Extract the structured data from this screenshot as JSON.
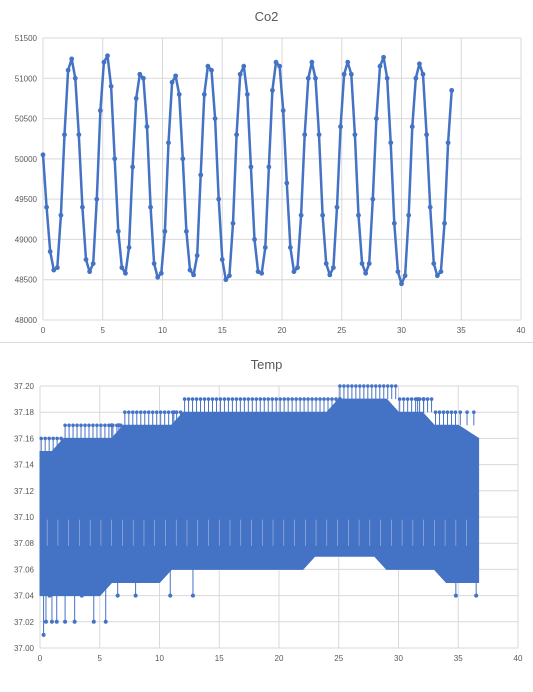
{
  "chart_data": [
    {
      "type": "scatter",
      "title": "Co2",
      "xlim": [
        0,
        40
      ],
      "ylim": [
        48000,
        51500
      ],
      "x_ticks": [
        "0",
        "5",
        "10",
        "15",
        "20",
        "25",
        "30",
        "35",
        "40"
      ],
      "y_ticks": [
        "48000",
        "48500",
        "49000",
        "49500",
        "50000",
        "50500",
        "51000",
        "51500"
      ],
      "grid": true,
      "series_color": "#4472c4",
      "series": [
        {
          "x": [
            0.0,
            0.3,
            0.6,
            0.9,
            1.2,
            1.5,
            1.8,
            2.1,
            2.4,
            2.7,
            3.0,
            3.3,
            3.6,
            3.9,
            4.2,
            4.5,
            4.8,
            5.1,
            5.4,
            5.7,
            6.0,
            6.3,
            6.6,
            6.9,
            7.2,
            7.5,
            7.8,
            8.1,
            8.4,
            8.7,
            9.0,
            9.3,
            9.6,
            9.9,
            10.2,
            10.5,
            10.8,
            11.1,
            11.4,
            11.7,
            12.0,
            12.3,
            12.6,
            12.9,
            13.2,
            13.5,
            13.8,
            14.1,
            14.4,
            14.7,
            15.0,
            15.3,
            15.6,
            15.9,
            16.2,
            16.5,
            16.8,
            17.1,
            17.4,
            17.7,
            18.0,
            18.3,
            18.6,
            18.9,
            19.2,
            19.5,
            19.8,
            20.1,
            20.4,
            20.7,
            21.0,
            21.3,
            21.6,
            21.9,
            22.2,
            22.5,
            22.8,
            23.1,
            23.4,
            23.7,
            24.0,
            24.3,
            24.6,
            24.9,
            25.2,
            25.5,
            25.8,
            26.1,
            26.4,
            26.7,
            27.0,
            27.3,
            27.6,
            27.9,
            28.2,
            28.5,
            28.8,
            29.1,
            29.4,
            29.7,
            30.0,
            30.3,
            30.6,
            30.9,
            31.2,
            31.5,
            31.8,
            32.1,
            32.4,
            32.7,
            33.0,
            33.3,
            33.6,
            33.9,
            34.2
          ],
          "y": [
            50050,
            49400,
            48850,
            48620,
            48650,
            49300,
            50300,
            51100,
            51240,
            51000,
            50300,
            49400,
            48750,
            48600,
            48700,
            49500,
            50600,
            51200,
            51280,
            50900,
            50000,
            49100,
            48650,
            48580,
            48900,
            49900,
            50750,
            51050,
            51000,
            50400,
            49400,
            48700,
            48530,
            48580,
            49100,
            50200,
            50950,
            51030,
            50800,
            50000,
            49100,
            48620,
            48560,
            48800,
            49800,
            50800,
            51150,
            51100,
            50500,
            49500,
            48750,
            48500,
            48550,
            49200,
            50300,
            51050,
            51150,
            50800,
            49900,
            49000,
            48600,
            48580,
            48900,
            49900,
            50850,
            51200,
            51150,
            50600,
            49700,
            48900,
            48600,
            48650,
            49300,
            50300,
            51000,
            51200,
            51000,
            50300,
            49300,
            48700,
            48560,
            48650,
            49400,
            50400,
            51050,
            51200,
            51050,
            50300,
            49300,
            48700,
            48580,
            48700,
            49500,
            50500,
            51150,
            51260,
            51000,
            50200,
            49200,
            48600,
            48450,
            48550,
            49300,
            50400,
            51000,
            51180,
            51050,
            50300,
            49400,
            48700,
            48550,
            48600,
            49200,
            50200,
            50850
          ]
        }
      ]
    },
    {
      "type": "line",
      "title": "Temp",
      "xlim": [
        0,
        40
      ],
      "ylim": [
        37.0,
        37.2
      ],
      "x_ticks": [
        "0",
        "5",
        "10",
        "15",
        "20",
        "25",
        "30",
        "35",
        "40"
      ],
      "y_ticks": [
        "37.00",
        "37.02",
        "37.04",
        "37.06",
        "37.08",
        "37.10",
        "37.12",
        "37.14",
        "37.16",
        "37.18",
        "37.20"
      ],
      "grid": true,
      "series_color": "#4472c4",
      "band": {
        "x": [
          0,
          1,
          2,
          3,
          4,
          5,
          6,
          7,
          8,
          9,
          10,
          11,
          12,
          13,
          14,
          15,
          16,
          17,
          18,
          19,
          20,
          21,
          22,
          23,
          24,
          25,
          26,
          27,
          28,
          29,
          30,
          31,
          32,
          33,
          34,
          35,
          36.7
        ],
        "upper": [
          37.15,
          37.15,
          37.16,
          37.16,
          37.16,
          37.16,
          37.16,
          37.17,
          37.17,
          37.17,
          37.17,
          37.17,
          37.18,
          37.18,
          37.18,
          37.18,
          37.18,
          37.18,
          37.18,
          37.18,
          37.18,
          37.18,
          37.18,
          37.18,
          37.18,
          37.19,
          37.19,
          37.19,
          37.19,
          37.19,
          37.18,
          37.18,
          37.18,
          37.17,
          37.17,
          37.17,
          37.16
        ],
        "lower": [
          37.04,
          37.04,
          37.04,
          37.04,
          37.04,
          37.04,
          37.05,
          37.05,
          37.05,
          37.05,
          37.05,
          37.06,
          37.06,
          37.06,
          37.06,
          37.06,
          37.06,
          37.06,
          37.06,
          37.06,
          37.06,
          37.06,
          37.06,
          37.07,
          37.07,
          37.07,
          37.07,
          37.07,
          37.07,
          37.06,
          37.06,
          37.06,
          37.06,
          37.06,
          37.05,
          37.05,
          37.05
        ]
      },
      "outliers_low": [
        {
          "x": 0.3,
          "y": 37.01
        },
        {
          "x": 0.5,
          "y": 37.02
        },
        {
          "x": 1.0,
          "y": 37.02
        },
        {
          "x": 1.4,
          "y": 37.02
        },
        {
          "x": 2.1,
          "y": 37.02
        },
        {
          "x": 2.9,
          "y": 37.02
        },
        {
          "x": 4.5,
          "y": 37.02
        },
        {
          "x": 5.5,
          "y": 37.02
        },
        {
          "x": 0.8,
          "y": 37.04
        },
        {
          "x": 3.5,
          "y": 37.04
        },
        {
          "x": 6.5,
          "y": 37.04
        },
        {
          "x": 8.0,
          "y": 37.04
        },
        {
          "x": 10.9,
          "y": 37.04
        },
        {
          "x": 12.8,
          "y": 37.04
        },
        {
          "x": 34.8,
          "y": 37.04
        },
        {
          "x": 36.5,
          "y": 37.04
        }
      ],
      "outliers_high": [
        {
          "x": 6.0,
          "y": 37.17
        },
        {
          "x": 6.6,
          "y": 37.17
        },
        {
          "x": 11.2,
          "y": 37.18
        },
        {
          "x": 25.1,
          "y": 37.19
        },
        {
          "x": 31.6,
          "y": 37.19
        },
        {
          "x": 32.1,
          "y": 37.19
        }
      ]
    }
  ]
}
